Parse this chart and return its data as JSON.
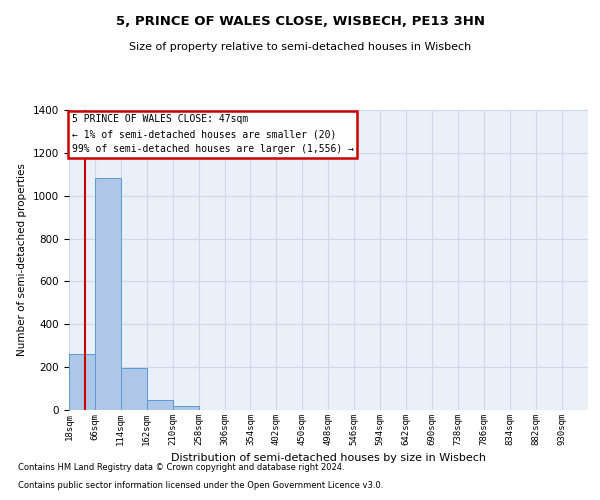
{
  "title": "5, PRINCE OF WALES CLOSE, WISBECH, PE13 3HN",
  "subtitle": "Size of property relative to semi-detached houses in Wisbech",
  "xlabel": "Distribution of semi-detached houses by size in Wisbech",
  "ylabel": "Number of semi-detached properties",
  "footnote1": "Contains HM Land Registry data © Crown copyright and database right 2024.",
  "footnote2": "Contains public sector information licensed under the Open Government Licence v3.0.",
  "annotation_title": "5 PRINCE OF WALES CLOSE: 47sqm",
  "annotation_line1": "← 1% of semi-detached houses are smaller (20)",
  "annotation_line2": "99% of semi-detached houses are larger (1,556) →",
  "subject_size": 47,
  "bar_edges": [
    18,
    66,
    114,
    162,
    210,
    258,
    306,
    354,
    402,
    450,
    498,
    546,
    594,
    642,
    690,
    738,
    786,
    834,
    882,
    930,
    979
  ],
  "bar_values": [
    262,
    1082,
    196,
    46,
    18,
    0,
    0,
    0,
    0,
    0,
    0,
    0,
    0,
    0,
    0,
    0,
    0,
    0,
    0,
    0
  ],
  "bar_color": "#aec6e8",
  "bar_edge_color": "#5b9bd5",
  "subject_line_color": "#cc0000",
  "annotation_box_color": "#cc0000",
  "grid_color": "#d0d8e8",
  "bg_color": "#eaf0f8",
  "ylim": [
    0,
    1400
  ],
  "yticks": [
    0,
    200,
    400,
    600,
    800,
    1000,
    1200,
    1400
  ],
  "title_fontsize": 9.5,
  "subtitle_fontsize": 8,
  "ylabel_fontsize": 7.5,
  "xlabel_fontsize": 8,
  "ytick_fontsize": 7.5,
  "xtick_fontsize": 6.5,
  "annotation_fontsize": 7,
  "footnote_fontsize": 6
}
